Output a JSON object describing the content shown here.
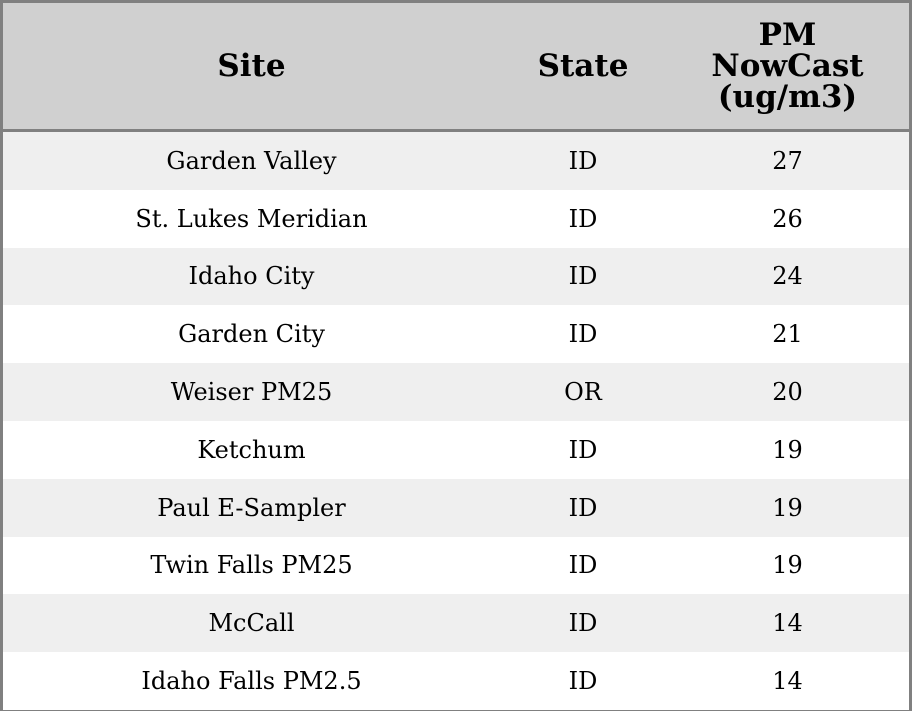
{
  "columns": [
    "Site",
    "State",
    "PM NowCast (ug/m3)"
  ],
  "header_lines": {
    "pm": [
      "PM",
      "NowCast",
      "(ug/m3)"
    ]
  },
  "rows": [
    {
      "site": "Garden Valley",
      "state": "ID",
      "pm": "27"
    },
    {
      "site": "St. Lukes Meridian",
      "state": "ID",
      "pm": "26"
    },
    {
      "site": "Idaho City",
      "state": "ID",
      "pm": "24"
    },
    {
      "site": "Garden City",
      "state": "ID",
      "pm": "21"
    },
    {
      "site": "Weiser PM25",
      "state": "OR",
      "pm": "20"
    },
    {
      "site": "Ketchum",
      "state": "ID",
      "pm": "19"
    },
    {
      "site": "Paul E-Sampler",
      "state": "ID",
      "pm": "19"
    },
    {
      "site": "Twin Falls PM25",
      "state": "ID",
      "pm": "19"
    },
    {
      "site": "McCall",
      "state": "ID",
      "pm": "14"
    },
    {
      "site": "Idaho Falls PM2.5",
      "state": "ID",
      "pm": "14"
    }
  ],
  "colors": {
    "header_bg": "#d0d0d0",
    "stripe_bg": "#efefef",
    "border": "#808080"
  }
}
